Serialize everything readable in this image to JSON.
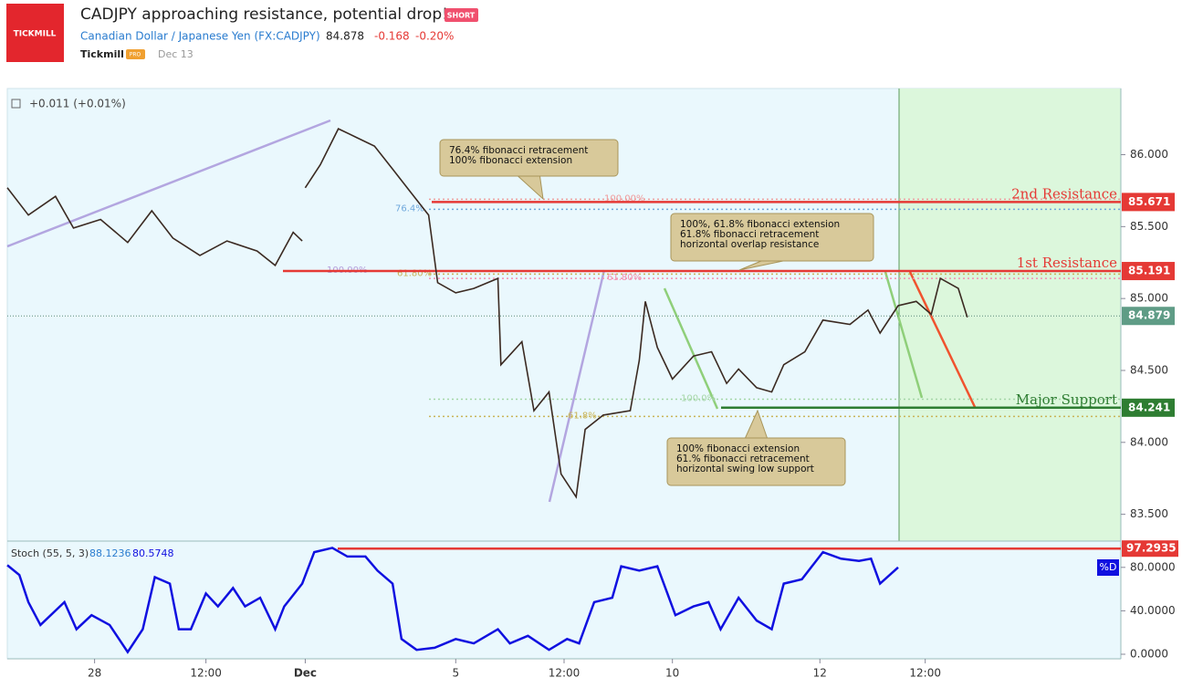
{
  "header": {
    "logo": "TICKMILL",
    "title": "CADJPY approaching resistance, potential drop!",
    "badge": "SHORT",
    "symbol": "Canadian Dollar / Japanese Yen (FX:CADJPY)",
    "price": "84.878",
    "change": "-0.168",
    "change_pct": "-0.20%",
    "author": "Tickmill",
    "author_badge": "PRO",
    "date": "Dec 13"
  },
  "chart_data": [
    {
      "type": "line",
      "legend_text": "+0.011 (+0.01%)",
      "x": [
        0,
        7,
        16,
        22,
        31,
        40,
        48,
        55,
        64,
        73,
        83,
        89,
        95,
        98,
        98,
        99,
        104,
        110,
        116,
        122,
        128,
        134,
        140,
        143,
        149,
        155,
        163,
        164,
        171,
        175,
        180,
        184,
        189,
        192,
        198,
        207,
        210,
        212,
        216,
        221,
        228,
        234,
        239,
        243,
        249,
        254,
        258,
        265,
        271,
        280,
        286,
        290,
        296,
        302,
        307,
        310,
        316,
        319
      ],
      "series": [
        {
          "name": "CADJPY",
          "color": "#3b2a22",
          "values": [
            85.77,
            85.58,
            85.71,
            85.49,
            85.55,
            85.39,
            85.61,
            85.42,
            85.3,
            85.4,
            85.33,
            85.23,
            85.46,
            85.4,
            null,
            85.77,
            85.93,
            86.18,
            86.12,
            86.06,
            85.9,
            85.74,
            85.58,
            85.11,
            85.04,
            85.07,
            85.14,
            84.54,
            84.7,
            84.22,
            84.35,
            83.78,
            83.62,
            84.09,
            84.19,
            84.22,
            84.57,
            84.98,
            84.66,
            84.44,
            84.6,
            84.63,
            84.41,
            84.51,
            84.38,
            84.35,
            84.54,
            84.63,
            84.85,
            84.82,
            84.92,
            84.76,
            84.95,
            84.98,
            84.89,
            85.14,
            85.07,
            84.87
          ]
        }
      ],
      "last_price": 84.879,
      "levels": [
        {
          "value": 85.671,
          "label": "2nd Resistance",
          "color": "#e53935"
        },
        {
          "value": 85.191,
          "label": "1st Resistance",
          "color": "#e53935"
        },
        {
          "value": 84.241,
          "label": "Major Support",
          "color": "#2e7d32"
        }
      ],
      "fib_lines": [
        {
          "value": 85.69,
          "label": "100.00%",
          "color": "#ef9a9a"
        },
        {
          "value": 85.62,
          "label": "76.4%",
          "color": "#6fa8dc"
        },
        {
          "value": 85.19,
          "label": "100.00%",
          "color": "#b39ddb"
        },
        {
          "value": 85.17,
          "label": "61.80%",
          "color": "#c9b458"
        },
        {
          "value": 85.14,
          "label": "61.80%",
          "color": "#f48fb1"
        },
        {
          "value": 84.3,
          "label": "100.0%",
          "color": "#a5d6a7"
        },
        {
          "value": 84.18,
          "label": "61.8%",
          "color": "#c9b458"
        }
      ],
      "annotations": [
        [
          "76.4% fibonacci retracement",
          "100% fibonacci extension"
        ],
        [
          "100%, 61.8% fibonacci extension",
          "61.8% fibonacci retracement",
          "horizontal overlap resistance"
        ],
        [
          "100% fibonacci extension",
          "61.% fibonacci retracement",
          "horizontal swing low support"
        ]
      ],
      "xlim": [
        0,
        370
      ],
      "ylim": [
        83.32,
        86.46
      ],
      "xticks": [
        {
          "value": 29,
          "label": "28"
        },
        {
          "value": 66,
          "label": "12:00"
        },
        {
          "value": 99,
          "label": "Dec"
        },
        {
          "value": 149,
          "label": "5"
        },
        {
          "value": 185,
          "label": "12:00"
        },
        {
          "value": 221,
          "label": "10"
        },
        {
          "value": 270,
          "label": "12"
        },
        {
          "value": 305,
          "label": "12:00"
        }
      ],
      "yticks": [
        {
          "value": 83.5,
          "label": "83.500"
        },
        {
          "value": 84,
          "label": "84.000"
        },
        {
          "value": 84.5,
          "label": "84.500"
        },
        {
          "value": 85,
          "label": "85.000"
        },
        {
          "value": 85.5,
          "label": "85.500"
        },
        {
          "value": 86,
          "label": "86.000"
        }
      ]
    },
    {
      "type": "line",
      "title": "Stoch (55, 5, 3)",
      "k_value": "88.1236",
      "d_value": "80.5748",
      "badge": "%D",
      "x": [
        0,
        4,
        7,
        11,
        19,
        23,
        28,
        34,
        40,
        45,
        49,
        54,
        57,
        61,
        66,
        70,
        75,
        79,
        84,
        89,
        92,
        98,
        102,
        108,
        113,
        119,
        123,
        128,
        131,
        136,
        142,
        149,
        155,
        163,
        167,
        173,
        180,
        186,
        190,
        195,
        201,
        204,
        210,
        216,
        222,
        228,
        233,
        237,
        243,
        249,
        254,
        258,
        264,
        271,
        277,
        283,
        287,
        290,
        296
      ],
      "series": [
        {
          "name": "%D",
          "color": "#1010e0",
          "values": [
            82,
            73,
            48,
            27,
            48,
            23,
            36,
            27,
            2,
            23,
            71,
            65,
            23,
            23,
            56,
            44,
            61,
            44,
            52,
            23,
            44,
            65,
            94,
            98,
            90,
            90,
            77,
            65,
            14,
            4,
            6,
            14,
            10,
            23,
            10,
            17,
            4,
            14,
            10,
            48,
            52,
            81,
            77,
            81,
            36,
            44,
            48,
            23,
            52,
            31,
            23,
            65,
            69,
            94,
            88,
            86,
            88,
            65,
            80
          ]
        }
      ],
      "level": 97.2935,
      "xlim": [
        0,
        370
      ],
      "ylim": [
        -4.2,
        104.2
      ],
      "yticks": [
        {
          "value": 0,
          "label": "0.0000"
        },
        {
          "value": 40,
          "label": "40.0000"
        },
        {
          "value": 80,
          "label": "80.0000"
        }
      ]
    }
  ]
}
